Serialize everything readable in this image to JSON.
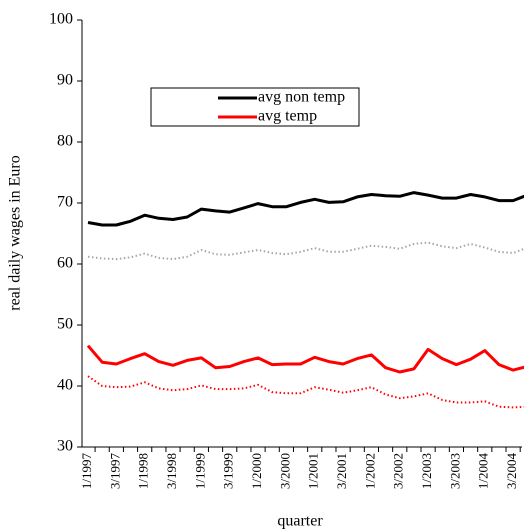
{
  "chart_data": {
    "type": "line",
    "x_label": "quarter",
    "y_label": "real daily wages in Euro",
    "categories": [
      "1/1997",
      null,
      "3/1997",
      null,
      "1/1998",
      null,
      "3/1998",
      null,
      "1/1999",
      null,
      "3/1999",
      null,
      "1/2000",
      null,
      "3/2000",
      null,
      "1/2001",
      null,
      "3/2001",
      null,
      "1/2002",
      null,
      "3/2002",
      null,
      "1/2003",
      null,
      "3/2003",
      null,
      "1/2004",
      null,
      "3/2004",
      null
    ],
    "ylim": [
      30,
      100
    ],
    "yticks": [
      30,
      40,
      50,
      60,
      70,
      80,
      90,
      100
    ],
    "series": [
      {
        "name": "avg non temp",
        "color": "#000000",
        "style": "solid",
        "values": [
          66.8,
          66.4,
          66.4,
          67.0,
          68.0,
          67.5,
          67.3,
          67.7,
          69.0,
          68.7,
          68.5,
          69.2,
          69.9,
          69.4,
          69.4,
          70.1,
          70.6,
          70.1,
          70.2,
          71.0,
          71.4,
          71.2,
          71.1,
          71.7,
          71.3,
          70.8,
          70.8,
          71.4,
          71.0,
          70.4,
          70.4,
          71.3
        ]
      },
      {
        "name": "avg temp",
        "color": "#ff0000",
        "style": "solid",
        "values": [
          46.6,
          43.9,
          43.6,
          44.5,
          45.3,
          44.0,
          43.4,
          44.2,
          44.6,
          43.0,
          43.2,
          44.0,
          44.6,
          43.5,
          43.6,
          43.6,
          44.7,
          44.0,
          43.6,
          44.5,
          45.1,
          43.0,
          42.3,
          42.8,
          46.0,
          44.5,
          43.5,
          44.4,
          45.8,
          43.5,
          42.6,
          43.2
        ]
      },
      {
        "color": "#a6a6a6",
        "style": "dotted",
        "values": [
          61.2,
          60.9,
          60.8,
          61.1,
          61.7,
          61.0,
          60.8,
          61.2,
          62.3,
          61.6,
          61.5,
          61.9,
          62.3,
          61.8,
          61.6,
          62.0,
          62.6,
          62.0,
          62.0,
          62.5,
          63.0,
          62.8,
          62.5,
          63.3,
          63.5,
          62.9,
          62.6,
          63.3,
          62.7,
          62.0,
          61.8,
          62.7
        ]
      },
      {
        "color": "#ff0000",
        "style": "dotted",
        "values": [
          41.6,
          40.0,
          39.8,
          39.9,
          40.6,
          39.6,
          39.3,
          39.5,
          40.1,
          39.5,
          39.5,
          39.6,
          40.2,
          39.0,
          38.8,
          38.8,
          39.8,
          39.4,
          38.9,
          39.3,
          39.8,
          38.6,
          38.0,
          38.3,
          38.8,
          37.7,
          37.3,
          37.3,
          37.5,
          36.6,
          36.5,
          36.6
        ]
      }
    ]
  }
}
